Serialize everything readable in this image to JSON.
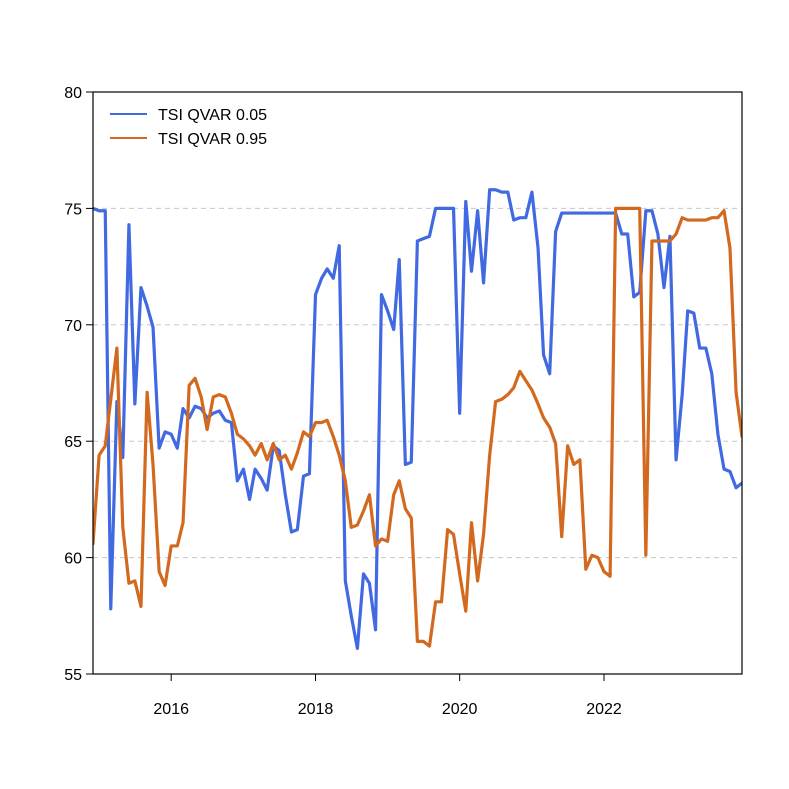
{
  "chart_data": {
    "type": "line",
    "title": "",
    "xlabel": "",
    "ylabel": "",
    "xlim": [
      "2014-12-01",
      "2023-12-01"
    ],
    "ylim": [
      55,
      80
    ],
    "x_ticks": [
      "2016",
      "2018",
      "2020",
      "2022"
    ],
    "y_ticks": [
      "55",
      "60",
      "65",
      "70",
      "75",
      "80"
    ],
    "grid": "horizontal dashed at y ticks",
    "legend": {
      "position": "top-left"
    },
    "series": [
      {
        "name": "TSI QVAR 0.05",
        "color": "#4169E1",
        "points": [
          [
            "2014-12-01",
            75.0
          ],
          [
            "2015-01-01",
            74.9
          ],
          [
            "2015-02-01",
            74.9
          ],
          [
            "2015-03-01",
            57.8
          ],
          [
            "2015-04-01",
            66.7
          ],
          [
            "2015-05-01",
            64.3
          ],
          [
            "2015-06-01",
            74.3
          ],
          [
            "2015-07-01",
            66.6
          ],
          [
            "2015-08-01",
            71.6
          ],
          [
            "2015-09-01",
            70.8
          ],
          [
            "2015-10-01",
            69.9
          ],
          [
            "2015-11-01",
            64.7
          ],
          [
            "2015-12-01",
            65.4
          ],
          [
            "2016-01-01",
            65.3
          ],
          [
            "2016-02-01",
            64.7
          ],
          [
            "2016-03-01",
            66.4
          ],
          [
            "2016-04-01",
            66.0
          ],
          [
            "2016-05-01",
            66.5
          ],
          [
            "2016-06-01",
            66.4
          ],
          [
            "2016-07-01",
            66.0
          ],
          [
            "2016-08-01",
            66.2
          ],
          [
            "2016-09-01",
            66.3
          ],
          [
            "2016-10-01",
            65.9
          ],
          [
            "2016-11-01",
            65.8
          ],
          [
            "2016-12-01",
            63.3
          ],
          [
            "2017-01-01",
            63.8
          ],
          [
            "2017-02-01",
            62.5
          ],
          [
            "2017-03-01",
            63.8
          ],
          [
            "2017-04-01",
            63.4
          ],
          [
            "2017-05-01",
            62.9
          ],
          [
            "2017-06-01",
            64.8
          ],
          [
            "2017-07-01",
            64.6
          ],
          [
            "2017-08-01",
            62.7
          ],
          [
            "2017-09-01",
            61.1
          ],
          [
            "2017-10-01",
            61.2
          ],
          [
            "2017-11-01",
            63.5
          ],
          [
            "2017-12-01",
            63.6
          ],
          [
            "2018-01-01",
            71.3
          ],
          [
            "2018-02-01",
            72.0
          ],
          [
            "2018-03-01",
            72.4
          ],
          [
            "2018-04-01",
            72.0
          ],
          [
            "2018-05-01",
            73.4
          ],
          [
            "2018-06-01",
            59.0
          ],
          [
            "2018-07-01",
            57.5
          ],
          [
            "2018-08-01",
            56.1
          ],
          [
            "2018-09-01",
            59.3
          ],
          [
            "2018-10-01",
            58.9
          ],
          [
            "2018-11-01",
            56.9
          ],
          [
            "2018-12-01",
            71.3
          ],
          [
            "2019-01-01",
            70.6
          ],
          [
            "2019-02-01",
            69.8
          ],
          [
            "2019-03-01",
            72.8
          ],
          [
            "2019-04-01",
            64.0
          ],
          [
            "2019-05-01",
            64.1
          ],
          [
            "2019-06-01",
            73.6
          ],
          [
            "2019-07-01",
            73.7
          ],
          [
            "2019-08-01",
            73.8
          ],
          [
            "2019-09-01",
            75.0
          ],
          [
            "2019-10-01",
            75.0
          ],
          [
            "2019-11-01",
            75.0
          ],
          [
            "2019-12-01",
            75.0
          ],
          [
            "2020-01-01",
            66.2
          ],
          [
            "2020-02-01",
            75.3
          ],
          [
            "2020-03-01",
            72.3
          ],
          [
            "2020-04-01",
            74.9
          ],
          [
            "2020-05-01",
            71.8
          ],
          [
            "2020-06-01",
            75.8
          ],
          [
            "2020-07-01",
            75.8
          ],
          [
            "2020-08-01",
            75.7
          ],
          [
            "2020-09-01",
            75.7
          ],
          [
            "2020-10-01",
            74.5
          ],
          [
            "2020-11-01",
            74.6
          ],
          [
            "2020-12-01",
            74.6
          ],
          [
            "2021-01-01",
            75.7
          ],
          [
            "2021-02-01",
            73.3
          ],
          [
            "2021-03-01",
            68.7
          ],
          [
            "2021-04-01",
            67.9
          ],
          [
            "2021-05-01",
            74.0
          ],
          [
            "2021-06-01",
            74.8
          ],
          [
            "2021-07-01",
            74.8
          ],
          [
            "2021-08-01",
            74.8
          ],
          [
            "2021-09-01",
            74.8
          ],
          [
            "2021-10-01",
            74.8
          ],
          [
            "2021-11-01",
            74.8
          ],
          [
            "2021-12-01",
            74.8
          ],
          [
            "2022-01-01",
            74.8
          ],
          [
            "2022-02-01",
            74.8
          ],
          [
            "2022-03-01",
            74.8
          ],
          [
            "2022-04-01",
            73.9
          ],
          [
            "2022-05-01",
            73.9
          ],
          [
            "2022-06-01",
            71.2
          ],
          [
            "2022-07-01",
            71.4
          ],
          [
            "2022-08-01",
            74.9
          ],
          [
            "2022-09-01",
            74.9
          ],
          [
            "2022-10-01",
            73.9
          ],
          [
            "2022-11-01",
            71.6
          ],
          [
            "2022-12-01",
            73.8
          ],
          [
            "2023-01-01",
            64.2
          ],
          [
            "2023-02-01",
            67.0
          ],
          [
            "2023-03-01",
            70.6
          ],
          [
            "2023-04-01",
            70.5
          ],
          [
            "2023-05-01",
            69.0
          ],
          [
            "2023-06-01",
            69.0
          ],
          [
            "2023-07-01",
            67.9
          ],
          [
            "2023-08-01",
            65.3
          ],
          [
            "2023-09-01",
            63.8
          ],
          [
            "2023-10-01",
            63.7
          ],
          [
            "2023-11-01",
            63.0
          ],
          [
            "2023-12-01",
            63.2
          ]
        ]
      },
      {
        "name": "TSI QVAR 0.95",
        "color": "#D2691E",
        "points": [
          [
            "2014-12-01",
            60.6
          ],
          [
            "2015-01-01",
            64.4
          ],
          [
            "2015-02-01",
            64.8
          ],
          [
            "2015-03-01",
            66.8
          ],
          [
            "2015-04-01",
            69.0
          ],
          [
            "2015-05-01",
            61.3
          ],
          [
            "2015-06-01",
            58.9
          ],
          [
            "2015-07-01",
            59.0
          ],
          [
            "2015-08-01",
            57.9
          ],
          [
            "2015-09-01",
            67.1
          ],
          [
            "2015-10-01",
            64.0
          ],
          [
            "2015-11-01",
            59.4
          ],
          [
            "2015-12-01",
            58.8
          ],
          [
            "2016-01-01",
            60.5
          ],
          [
            "2016-02-01",
            60.5
          ],
          [
            "2016-03-01",
            61.5
          ],
          [
            "2016-04-01",
            67.4
          ],
          [
            "2016-05-01",
            67.7
          ],
          [
            "2016-06-01",
            66.9
          ],
          [
            "2016-07-01",
            65.5
          ],
          [
            "2016-08-01",
            66.9
          ],
          [
            "2016-09-01",
            67.0
          ],
          [
            "2016-10-01",
            66.9
          ],
          [
            "2016-11-01",
            66.2
          ],
          [
            "2016-12-01",
            65.3
          ],
          [
            "2017-01-01",
            65.1
          ],
          [
            "2017-02-01",
            64.8
          ],
          [
            "2017-03-01",
            64.4
          ],
          [
            "2017-04-01",
            64.9
          ],
          [
            "2017-05-01",
            64.2
          ],
          [
            "2017-06-01",
            64.9
          ],
          [
            "2017-07-01",
            64.2
          ],
          [
            "2017-08-01",
            64.4
          ],
          [
            "2017-09-01",
            63.8
          ],
          [
            "2017-10-01",
            64.5
          ],
          [
            "2017-11-01",
            65.4
          ],
          [
            "2017-12-01",
            65.2
          ],
          [
            "2018-01-01",
            65.8
          ],
          [
            "2018-02-01",
            65.8
          ],
          [
            "2018-03-01",
            65.9
          ],
          [
            "2018-04-01",
            65.2
          ],
          [
            "2018-05-01",
            64.4
          ],
          [
            "2018-06-01",
            63.3
          ],
          [
            "2018-07-01",
            61.3
          ],
          [
            "2018-08-01",
            61.4
          ],
          [
            "2018-09-01",
            62.0
          ],
          [
            "2018-10-01",
            62.7
          ],
          [
            "2018-11-01",
            60.5
          ],
          [
            "2018-12-01",
            60.8
          ],
          [
            "2019-01-01",
            60.7
          ],
          [
            "2019-02-01",
            62.7
          ],
          [
            "2019-03-01",
            63.3
          ],
          [
            "2019-04-01",
            62.1
          ],
          [
            "2019-05-01",
            61.7
          ],
          [
            "2019-06-01",
            56.4
          ],
          [
            "2019-07-01",
            56.4
          ],
          [
            "2019-08-01",
            56.2
          ],
          [
            "2019-09-01",
            58.1
          ],
          [
            "2019-10-01",
            58.1
          ],
          [
            "2019-11-01",
            61.2
          ],
          [
            "2019-12-01",
            61.0
          ],
          [
            "2020-01-01",
            59.3
          ],
          [
            "2020-02-01",
            57.7
          ],
          [
            "2020-03-01",
            61.5
          ],
          [
            "2020-04-01",
            59.0
          ],
          [
            "2020-05-01",
            61.0
          ],
          [
            "2020-06-01",
            64.4
          ],
          [
            "2020-07-01",
            66.7
          ],
          [
            "2020-08-01",
            66.8
          ],
          [
            "2020-09-01",
            67.0
          ],
          [
            "2020-10-01",
            67.3
          ],
          [
            "2020-11-01",
            68.0
          ],
          [
            "2020-12-01",
            67.6
          ],
          [
            "2021-01-01",
            67.2
          ],
          [
            "2021-02-01",
            66.6
          ],
          [
            "2021-03-01",
            66.0
          ],
          [
            "2021-04-01",
            65.6
          ],
          [
            "2021-05-01",
            64.9
          ],
          [
            "2021-06-01",
            60.9
          ],
          [
            "2021-07-01",
            64.8
          ],
          [
            "2021-08-01",
            64.0
          ],
          [
            "2021-09-01",
            64.2
          ],
          [
            "2021-10-01",
            59.5
          ],
          [
            "2021-11-01",
            60.1
          ],
          [
            "2021-12-01",
            60.0
          ],
          [
            "2022-01-01",
            59.4
          ],
          [
            "2022-02-01",
            59.2
          ],
          [
            "2022-03-01",
            75.0
          ],
          [
            "2022-04-01",
            75.0
          ],
          [
            "2022-05-01",
            75.0
          ],
          [
            "2022-06-01",
            75.0
          ],
          [
            "2022-07-01",
            75.0
          ],
          [
            "2022-08-01",
            60.1
          ],
          [
            "2022-09-01",
            73.6
          ],
          [
            "2022-10-01",
            73.6
          ],
          [
            "2022-11-01",
            73.6
          ],
          [
            "2022-12-01",
            73.6
          ],
          [
            "2023-01-01",
            73.9
          ],
          [
            "2023-02-01",
            74.6
          ],
          [
            "2023-03-01",
            74.5
          ],
          [
            "2023-04-01",
            74.5
          ],
          [
            "2023-05-01",
            74.5
          ],
          [
            "2023-06-01",
            74.5
          ],
          [
            "2023-07-01",
            74.6
          ],
          [
            "2023-08-01",
            74.6
          ],
          [
            "2023-09-01",
            74.9
          ],
          [
            "2023-10-01",
            73.3
          ],
          [
            "2023-11-01",
            67.1
          ],
          [
            "2023-12-01",
            65.2
          ]
        ]
      }
    ]
  }
}
